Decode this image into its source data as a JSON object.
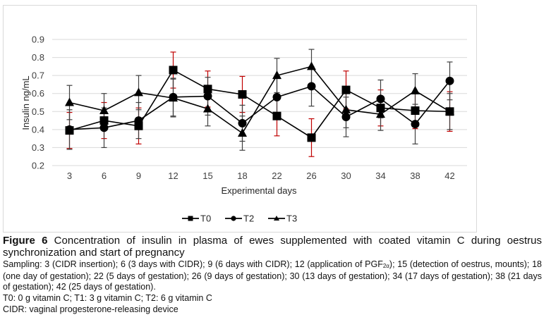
{
  "figure": {
    "label": "Figure 6",
    "title": "Concentration of insulin in plasma of ewes supplemented with coated vitamin C during oestrus synchronization and start of pregnancy",
    "sampling_prefix": "Sampling: 3 (CIDR insertion); 6 (3 days with CIDR); 9 (6 days with CIDR); 12 (application of PGF",
    "sampling_sub": "2α",
    "sampling_suffix": "); 15 (detection of oestrus, mounts); 18 (one day of gestation); 22 (5 days of gestation); 26 (9 days of gestation); 30 (13 days of gestation); 34 (17 days of gestation); 38 (21 days of gestation); 42 (25 days of gestation).",
    "treatments_note": "T0: 0 g vitamin C; T1: 3 g vitamin C; T2: 6 g vitamin C",
    "cidr_note": "CIDR: vaginal progesterone-releasing device"
  },
  "chart_data": {
    "type": "line",
    "title": "",
    "xlabel": "Experimental days",
    "ylabel": "Insulin ng/mL",
    "categories": [
      "3",
      "6",
      "9",
      "12",
      "15",
      "18",
      "22",
      "26",
      "30",
      "34",
      "38",
      "42"
    ],
    "ylim": [
      0.2,
      0.9
    ],
    "yticks": [
      "0.2",
      "0.3",
      "0.4",
      "0.5",
      "0.6",
      "0.7",
      "0.8",
      "0.9"
    ],
    "grid": true,
    "legend_position": "bottom-center",
    "series": [
      {
        "name": "T0",
        "marker": "square",
        "error_color": "#c00000",
        "values": [
          0.395,
          0.45,
          0.42,
          0.73,
          0.625,
          0.595,
          0.475,
          0.355,
          0.62,
          0.52,
          0.505,
          0.5
        ],
        "errors": [
          0.1,
          0.1,
          0.1,
          0.1,
          0.1,
          0.1,
          0.11,
          0.105,
          0.105,
          0.1,
          0.1,
          0.11
        ]
      },
      {
        "name": "T2",
        "marker": "circle",
        "error_color": "#404040",
        "values": [
          0.4,
          0.41,
          0.45,
          0.58,
          0.585,
          0.435,
          0.58,
          0.64,
          0.47,
          0.57,
          0.43,
          0.67
        ],
        "errors": [
          0.11,
          0.11,
          0.1,
          0.105,
          0.105,
          0.1,
          0.11,
          0.11,
          0.11,
          0.105,
          0.11,
          0.105
        ]
      },
      {
        "name": "T3",
        "marker": "triangle",
        "error_color": "#404040",
        "values": [
          0.55,
          0.505,
          0.605,
          0.575,
          0.515,
          0.38,
          0.7,
          0.75,
          0.51,
          0.485,
          0.615,
          0.5
        ],
        "errors": [
          0.095,
          0.095,
          0.095,
          0.105,
          0.095,
          0.095,
          0.095,
          0.095,
          0.1,
          0.09,
          0.095,
          0.1
        ]
      }
    ]
  }
}
